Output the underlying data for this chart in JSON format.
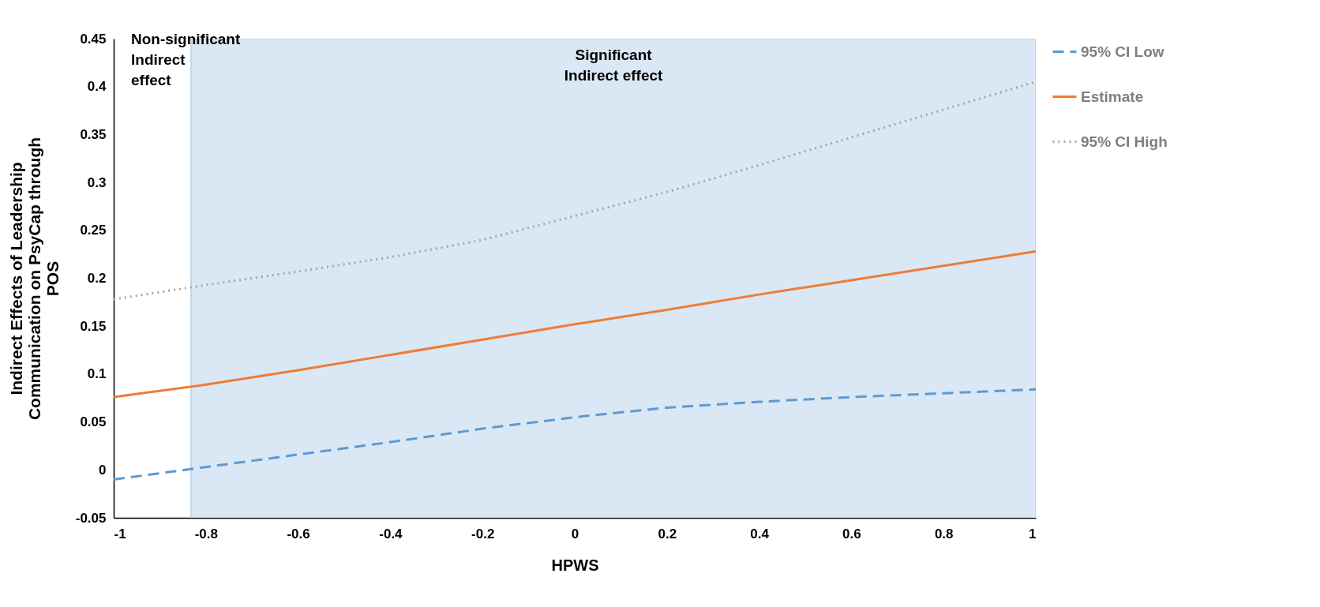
{
  "chart_data": {
    "type": "line",
    "xlabel": "HPWS",
    "ylabel": "Indirect Effects of Leadership\nCommunication on PsyCap through\nPOS",
    "x": [
      -1,
      -0.8,
      -0.6,
      -0.4,
      -0.2,
      0,
      0.2,
      0.4,
      0.6,
      0.8,
      1
    ],
    "series": [
      {
        "name": "95% CI Low",
        "color": "#5b9bd5",
        "line_style": "dashed",
        "values": [
          -0.01,
          0.003,
          0.016,
          0.029,
          0.043,
          0.055,
          0.065,
          0.071,
          0.076,
          0.08,
          0.084
        ]
      },
      {
        "name": "Estimate",
        "color": "#ed7d31",
        "line_style": "solid",
        "values": [
          0.076,
          0.089,
          0.104,
          0.12,
          0.136,
          0.152,
          0.167,
          0.183,
          0.198,
          0.213,
          0.228
        ]
      },
      {
        "name": "95% CI High",
        "color": "#a5a5a5",
        "line_style": "dotted",
        "values": [
          0.178,
          0.193,
          0.207,
          0.222,
          0.24,
          0.265,
          0.29,
          0.318,
          0.347,
          0.376,
          0.405
        ]
      }
    ],
    "bands": [
      {
        "axis": "x",
        "from": -0.832,
        "to": 1,
        "label": "Significant\nIndirect effect",
        "color": "#dae7f4"
      }
    ],
    "annotations": [
      "Non-significant\nIndirect\neffect"
    ],
    "xlim": [
      -1,
      1
    ],
    "xticks": [
      -1,
      -0.8,
      -0.6,
      -0.4,
      -0.2,
      0,
      0.2,
      0.4,
      0.6,
      0.8,
      1
    ],
    "ylim": [
      -0.05,
      0.45
    ],
    "yticks": [
      -0.05,
      0,
      0.05,
      0.1,
      0.15,
      0.2,
      0.25,
      0.3,
      0.35,
      0.4,
      0.45
    ],
    "grid": false,
    "legend": "right",
    "marker": "none"
  }
}
